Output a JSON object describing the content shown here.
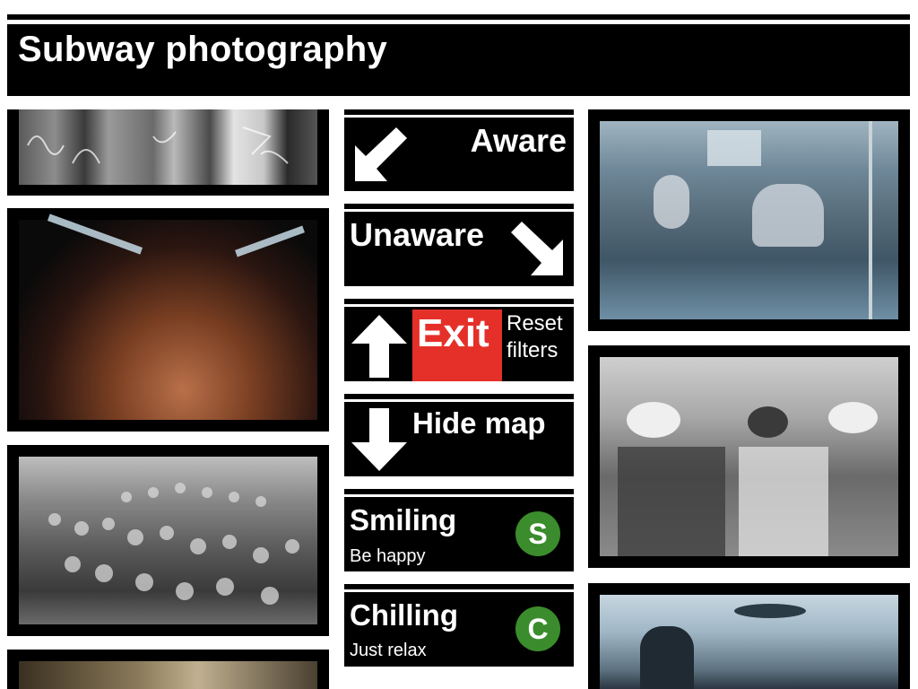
{
  "header": {
    "title": "Subway photography"
  },
  "photos": {
    "left": [
      {
        "name": "graffiti-subway-car"
      },
      {
        "name": "shirtless-man-portrait"
      },
      {
        "name": "crowd-in-tunnel"
      },
      {
        "name": "partial-photo"
      }
    ],
    "right": [
      {
        "name": "girls-on-graffiti-train"
      },
      {
        "name": "women-in-hats-bw"
      },
      {
        "name": "train-interior-passengers"
      }
    ]
  },
  "signs": {
    "aware": {
      "label": "Aware",
      "icon": "arrow-down-left-icon"
    },
    "unaware": {
      "label": "Unaware",
      "icon": "arrow-down-right-icon"
    },
    "exit": {
      "exit_label": "Exit",
      "reset_label_1": "Reset",
      "reset_label_2": "filters",
      "icon": "arrow-up-icon"
    },
    "hide_map": {
      "label": "Hide map",
      "icon": "arrow-down-icon"
    },
    "smiling": {
      "label": "Smiling",
      "sub": "Be happy",
      "badge": "S",
      "badge_color": "#3b8c2c"
    },
    "chilling": {
      "label": "Chilling",
      "sub": "Just relax",
      "badge": "C",
      "badge_color": "#3b8c2c"
    }
  },
  "colors": {
    "exit_red": "#e5302a",
    "background": "#ffffff",
    "sign_black": "#000000"
  }
}
